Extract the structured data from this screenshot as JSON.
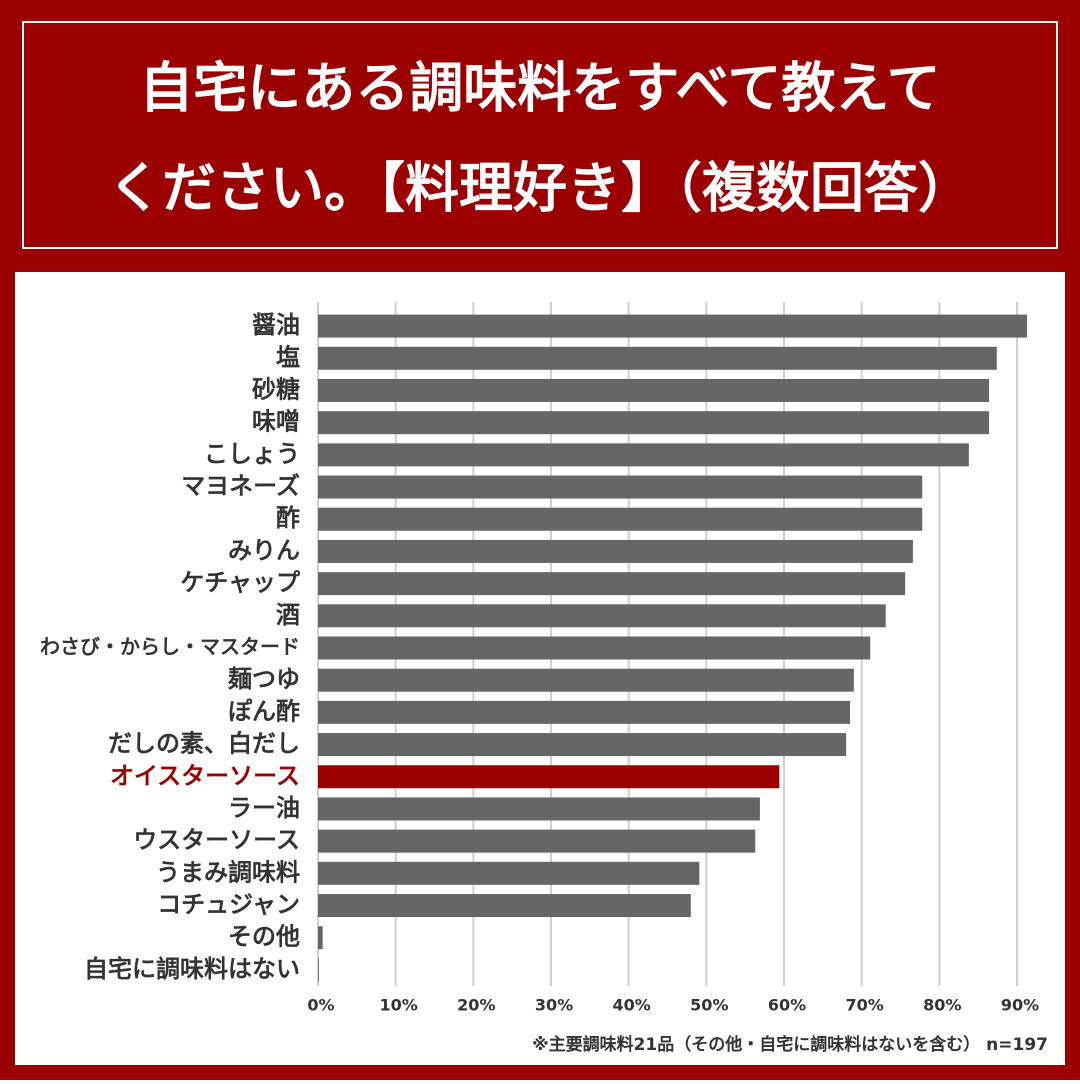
{
  "chart_data": {
    "type": "hbar",
    "title": [
      "自宅にある調味料をすべて教えて",
      "ください。【料理好き】（複数回答）"
    ],
    "categories": [
      "醤油",
      "塩",
      "砂糖",
      "味噌",
      "こしょう",
      "マヨネーズ",
      "酢",
      "みりん",
      "ケチャップ",
      "酒",
      "わさび・からし・マスタード",
      "麺つゆ",
      "ぽん酢",
      "だしの素、白だし",
      "オイスターソース",
      "ラー油",
      "ウスターソース",
      "うまみ調味料",
      "コチュジャン",
      "その他",
      "自宅に調味料はない"
    ],
    "values": [
      91.3,
      87.4,
      86.4,
      86.4,
      83.8,
      77.8,
      77.8,
      76.6,
      75.6,
      73.1,
      71.1,
      69.0,
      68.5,
      68.0,
      59.4,
      56.9,
      56.3,
      49.1,
      48.0,
      0.6,
      0.1
    ],
    "colors": [
      "#666666",
      "#666666",
      "#666666",
      "#666666",
      "#666666",
      "#666666",
      "#666666",
      "#666666",
      "#666666",
      "#666666",
      "#666666",
      "#666666",
      "#666666",
      "#666666",
      "#9b0000",
      "#666666",
      "#666666",
      "#666666",
      "#666666",
      "#666666",
      "#666666"
    ],
    "xlim": [
      0,
      90
    ],
    "xticks": [
      {
        "value": 0,
        "label": "0%"
      },
      {
        "value": 10,
        "label": "10%"
      },
      {
        "value": 20,
        "label": "20%"
      },
      {
        "value": 30,
        "label": "30%"
      },
      {
        "value": 40,
        "label": "40%"
      },
      {
        "value": 50,
        "label": "50%"
      },
      {
        "value": 60,
        "label": "60%"
      },
      {
        "value": 70,
        "label": "70%"
      },
      {
        "value": 80,
        "label": "80%"
      },
      {
        "value": 90,
        "label": "90%"
      }
    ],
    "grid": true,
    "note": "※主要調味料21品（その他・自宅に調味料はないを含む） n=197"
  }
}
